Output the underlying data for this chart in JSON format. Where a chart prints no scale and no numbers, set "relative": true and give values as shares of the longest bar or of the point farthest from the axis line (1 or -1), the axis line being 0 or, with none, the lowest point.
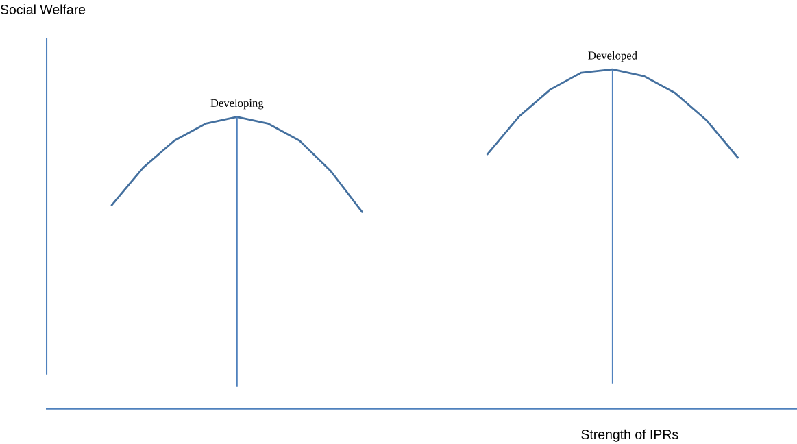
{
  "chart_data": {
    "type": "line",
    "relative": true,
    "xlabel": "Strength of IPRs",
    "ylabel": "Social Welfare",
    "categories": [
      null,
      null,
      null,
      null,
      null,
      null,
      null,
      null,
      null,
      null,
      null,
      null,
      null,
      null,
      null,
      null,
      null,
      null,
      null,
      null,
      null
    ],
    "series": [
      {
        "name": "Developing",
        "color": "#44709f",
        "values": [
          0.6,
          0.71,
          0.79,
          0.84,
          0.86,
          0.84,
          0.79,
          0.7,
          0.58,
          null,
          null,
          null,
          null,
          null,
          null,
          null,
          null,
          null,
          null,
          null,
          null
        ]
      },
      {
        "name": "Developed",
        "color": "#44709f",
        "values": [
          null,
          null,
          null,
          null,
          null,
          null,
          null,
          null,
          null,
          null,
          null,
          null,
          0.75,
          0.86,
          0.94,
          0.99,
          1.0,
          0.98,
          0.93,
          0.85,
          0.74
        ]
      }
    ],
    "legend": false,
    "tick_labels": false
  }
}
